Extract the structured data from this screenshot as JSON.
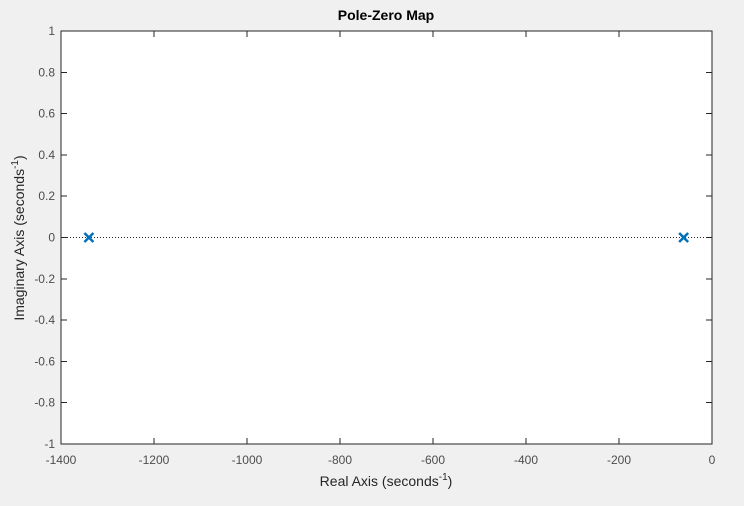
{
  "chart_data": {
    "type": "scatter",
    "title": "Pole-Zero Map",
    "xlabel": {
      "main": "Real Axis (seconds",
      "sup": "-1",
      "close": ")"
    },
    "ylabel": {
      "main": "Imaginary Axis (seconds",
      "sup": "-1",
      "close": ")"
    },
    "xlim": [
      -1400,
      0
    ],
    "ylim": [
      -1,
      1
    ],
    "xticks": [
      -1400,
      -1200,
      -1000,
      -800,
      -600,
      -400,
      -200,
      0
    ],
    "yticks": [
      -1,
      -0.8,
      -0.6,
      -0.4,
      -0.2,
      0,
      0.2,
      0.4,
      0.6,
      0.8,
      1
    ],
    "xtick_labels": [
      "-1400",
      "-1200",
      "-1000",
      "-800",
      "-600",
      "-400",
      "-200",
      "0"
    ],
    "ytick_labels": [
      "-1",
      "-0.8",
      "-0.6",
      "-0.4",
      "-0.2",
      "0",
      "0.2",
      "0.4",
      "0.6",
      "0.8",
      "1"
    ],
    "grid": false,
    "zero_line": "dotted",
    "marker": "x",
    "series": [
      {
        "color": "#0072bd",
        "points": [
          {
            "x": -1340,
            "y": 0
          },
          {
            "x": -61,
            "y": 0
          }
        ]
      }
    ]
  }
}
